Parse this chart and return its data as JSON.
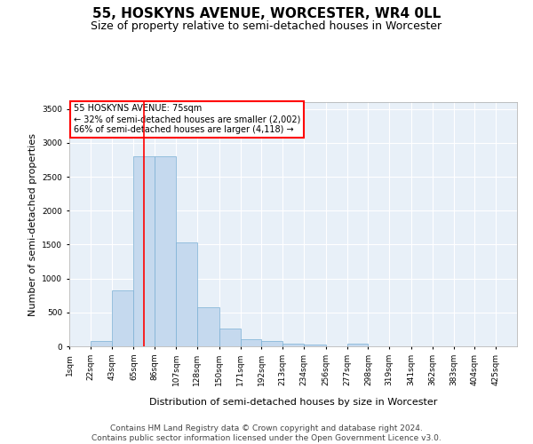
{
  "title": "55, HOSKYNS AVENUE, WORCESTER, WR4 0LL",
  "subtitle": "Size of property relative to semi-detached houses in Worcester",
  "xlabel": "Distribution of semi-detached houses by size in Worcester",
  "ylabel": "Number of semi-detached properties",
  "bar_color": "#c5d9ee",
  "bar_edge_color": "#7aafd4",
  "background_color": "#e8f0f8",
  "grid_color": "#ffffff",
  "annotation_text": "55 HOSKYNS AVENUE: 75sqm\n← 32% of semi-detached houses are smaller (2,002)\n66% of semi-detached houses are larger (4,118) →",
  "annotation_box_color": "white",
  "annotation_box_edge": "red",
  "property_line_x": 75,
  "property_line_color": "red",
  "bin_edges": [
    1,
    22,
    43,
    65,
    86,
    107,
    128,
    150,
    171,
    192,
    213,
    234,
    256,
    277,
    298,
    319,
    341,
    362,
    383,
    404,
    425,
    446
  ],
  "bin_labels": [
    "1sqm",
    "22sqm",
    "43sqm",
    "65sqm",
    "86sqm",
    "107sqm",
    "128sqm",
    "150sqm",
    "171sqm",
    "192sqm",
    "213sqm",
    "234sqm",
    "256sqm",
    "277sqm",
    "298sqm",
    "319sqm",
    "341sqm",
    "362sqm",
    "383sqm",
    "404sqm",
    "425sqm"
  ],
  "bar_heights": [
    0,
    75,
    830,
    2800,
    2800,
    1530,
    580,
    260,
    100,
    75,
    40,
    30,
    0,
    40,
    0,
    0,
    0,
    0,
    0,
    0,
    0
  ],
  "ylim": [
    0,
    3600
  ],
  "yticks": [
    0,
    500,
    1000,
    1500,
    2000,
    2500,
    3000,
    3500
  ],
  "footer_line1": "Contains HM Land Registry data © Crown copyright and database right 2024.",
  "footer_line2": "Contains public sector information licensed under the Open Government Licence v3.0.",
  "title_fontsize": 11,
  "subtitle_fontsize": 9,
  "xlabel_fontsize": 8,
  "ylabel_fontsize": 8,
  "tick_fontsize": 6.5,
  "footer_fontsize": 6.5
}
